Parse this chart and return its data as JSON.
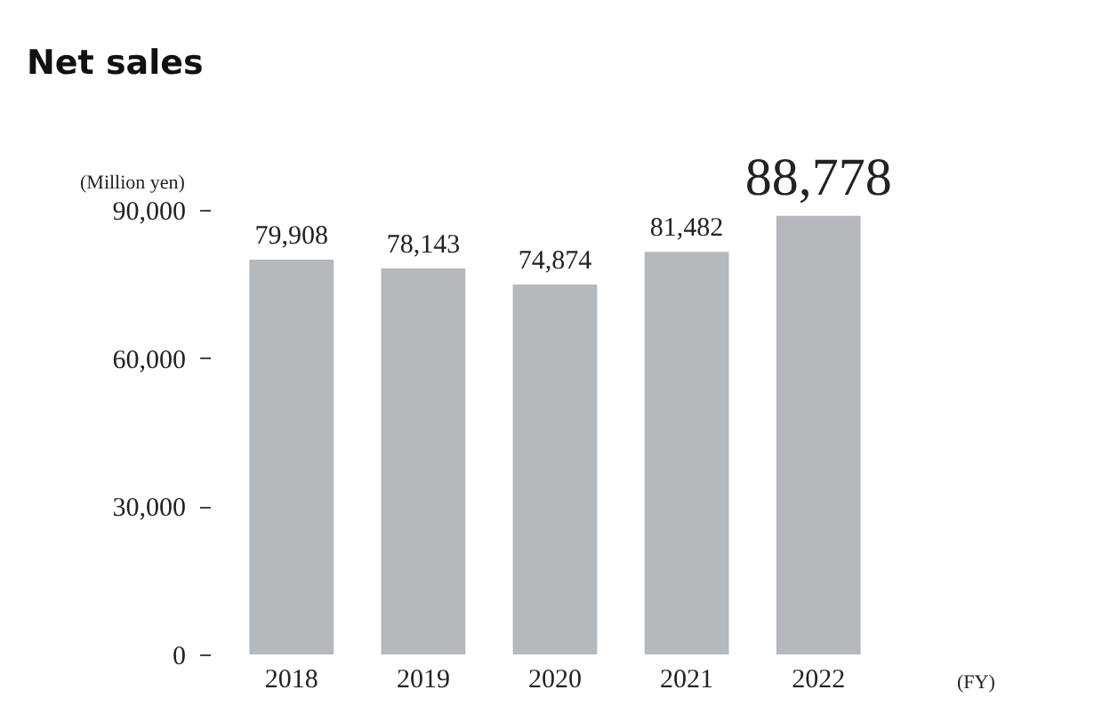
{
  "chart_data": {
    "type": "bar",
    "title": "Net sales",
    "ylabel": "(Million yen)",
    "xlabel": "(FY)",
    "categories": [
      "2018",
      "2019",
      "2020",
      "2021",
      "2022"
    ],
    "values": [
      79908,
      78143,
      74874,
      81482,
      88778
    ],
    "color": "#b3b9bc",
    "ylim": [
      0,
      90000
    ],
    "yticks": [
      0,
      {
        "value": 30000,
        "label": "30,000"
      },
      {
        "value": 60000,
        "label": "60,000"
      },
      {
        "value": 90000,
        "label": "90,000"
      }
    ],
    "value_labels": [
      "79,908",
      "78,143",
      "74,874",
      "81,482",
      "88,778"
    ],
    "grid": false
  }
}
